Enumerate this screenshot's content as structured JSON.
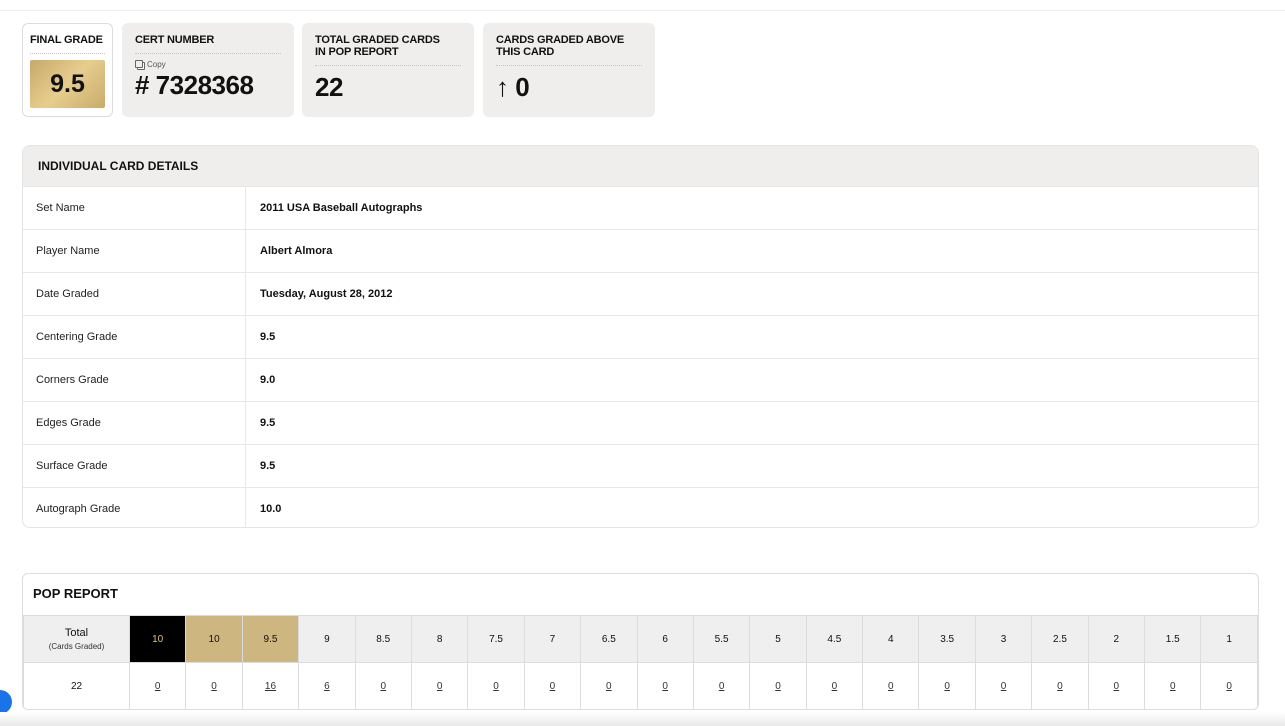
{
  "summary": {
    "final_grade_label": "FINAL GRADE",
    "final_grade": "9.5",
    "cert_label": "CERT NUMBER",
    "copy_label": "Copy",
    "cert_number": "# 7328368",
    "total_label": "TOTAL GRADED CARDS IN POP REPORT",
    "total": "22",
    "above_label": "CARDS GRADED ABOVE THIS CARD",
    "above": "↑ 0"
  },
  "details": {
    "title": "INDIVIDUAL CARD DETAILS",
    "rows": [
      {
        "label": "Set Name",
        "value": "2011 USA Baseball Autographs"
      },
      {
        "label": "Player Name",
        "value": "Albert Almora"
      },
      {
        "label": "Date Graded",
        "value": "Tuesday, August 28, 2012"
      },
      {
        "label": "Centering Grade",
        "value": "9.5"
      },
      {
        "label": "Corners Grade",
        "value": "9.0"
      },
      {
        "label": "Edges Grade",
        "value": "9.5"
      },
      {
        "label": "Surface Grade",
        "value": "9.5"
      },
      {
        "label": "Autograph Grade",
        "value": "10.0"
      }
    ]
  },
  "pop": {
    "title": "POP REPORT",
    "total_label": "Total",
    "total_sub": "(Cards Graded)",
    "total": "22",
    "grades": [
      "10",
      "10",
      "9.5",
      "9",
      "8.5",
      "8",
      "7.5",
      "7",
      "6.5",
      "6",
      "5.5",
      "5",
      "4.5",
      "4",
      "3.5",
      "3",
      "2.5",
      "2",
      "1.5",
      "1"
    ],
    "counts": [
      "0",
      "0",
      "16",
      "6",
      "0",
      "0",
      "0",
      "0",
      "0",
      "0",
      "0",
      "0",
      "0",
      "0",
      "0",
      "0",
      "0",
      "0",
      "0",
      "0"
    ]
  }
}
